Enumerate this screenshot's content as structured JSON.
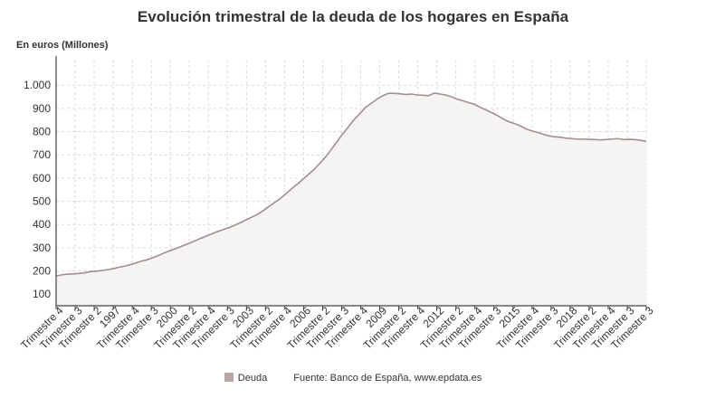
{
  "chart_data": {
    "type": "area",
    "title": "Evolución trimestral de la deuda de los hogares en España",
    "ylabel": "En euros (Millones)",
    "xlabel": "",
    "ylim": [
      50,
      1110
    ],
    "yticks": [
      100,
      200,
      300,
      400,
      500,
      600,
      700,
      800,
      900,
      1000
    ],
    "ytick_labels": [
      "100",
      "200",
      "300",
      "400",
      "500",
      "600",
      "700",
      "800",
      "900",
      "1.000"
    ],
    "grid": true,
    "legend_position": "bottom",
    "x_tick_labels": [
      "Trimestre 4",
      "Trimestre 3",
      "Trimestre 2",
      "1997",
      "Trimestre 4",
      "Trimestre 3",
      "2000",
      "Trimestre 2",
      "Trimestre 4",
      "Trimestre 3",
      "2003",
      "Trimestre 2",
      "Trimestre 4",
      "2006",
      "Trimestre 2",
      "Trimestre 3",
      "Trimestre 4",
      "2009",
      "Trimestre 2",
      "Trimestre 4",
      "2012",
      "Trimestre 2",
      "Trimestre 4",
      "Trimestre 3",
      "2015",
      "Trimestre 4",
      "Trimestre 3",
      "2018",
      "Trimestre 2",
      "Trimestre 4",
      "Trimestre 3",
      "Trimestre 3"
    ],
    "series": [
      {
        "name": "Deuda",
        "color": "#b8a6a6",
        "values": [
          178,
          183,
          186,
          187,
          189,
          192,
          197,
          199,
          202,
          205,
          210,
          216,
          221,
          227,
          235,
          243,
          249,
          258,
          268,
          279,
          288,
          297,
          307,
          317,
          327,
          338,
          348,
          358,
          368,
          377,
          385,
          395,
          406,
          418,
          430,
          442,
          457,
          475,
          492,
          510,
          530,
          552,
          572,
          593,
          615,
          637,
          663,
          690,
          722,
          756,
          790,
          820,
          852,
          877,
          905,
          922,
          940,
          955,
          965,
          965,
          963,
          960,
          962,
          958,
          957,
          955,
          966,
          962,
          958,
          950,
          940,
          933,
          925,
          918,
          905,
          894,
          882,
          870,
          855,
          843,
          835,
          825,
          812,
          803,
          797,
          789,
          782,
          778,
          776,
          772,
          770,
          768,
          768,
          767,
          766,
          765,
          766,
          768,
          770,
          766,
          767,
          766,
          763,
          758
        ]
      }
    ]
  },
  "legend": {
    "label": "Deuda",
    "color": "#b8a6a6"
  },
  "footer": {
    "source": "Fuente: Banco de España, www.epdata.es"
  },
  "colors": {
    "line": "#a08f8f",
    "fill": "#f6f3f3",
    "grid": "#d9d9d9",
    "axis": "#444444"
  }
}
